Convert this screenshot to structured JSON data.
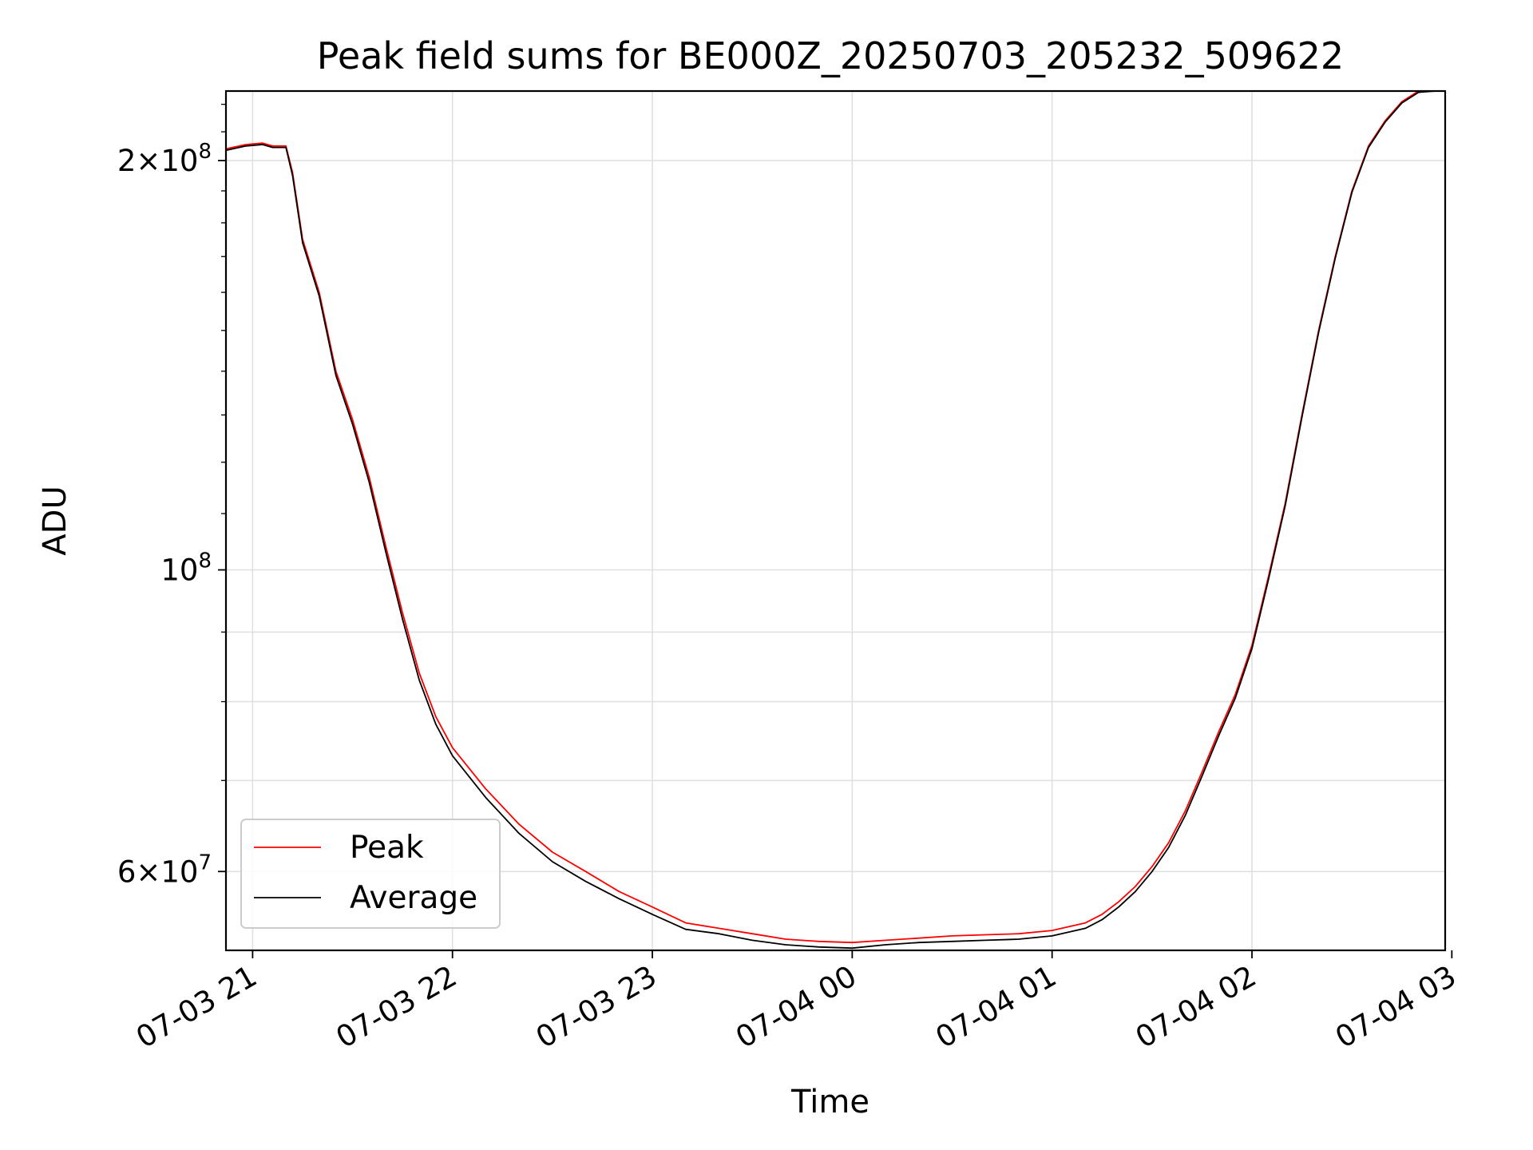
{
  "chart_data": {
    "type": "line",
    "title": "Peak field sums for BE000Z_20250703_205232_509622",
    "xlabel": "Time",
    "ylabel": "ADU",
    "yscale": "log",
    "grid": true,
    "legend_position": "lower-left",
    "xlim": [
      "2025-07-03 20:52",
      "2025-07-04 02:58"
    ],
    "ylim": [
      52500000,
      225000000
    ],
    "x_ticks": [
      "07-03 21",
      "07-03 22",
      "07-03 23",
      "07-04 00",
      "07-04 01",
      "07-04 02",
      "07-04 03"
    ],
    "y_ticks": [
      {
        "value": 200000000,
        "mant": "2",
        "exp": "8"
      },
      {
        "value": 100000000,
        "mant": "",
        "exp": "8"
      },
      {
        "value": 60000000,
        "mant": "6",
        "exp": "7"
      }
    ],
    "series": [
      {
        "name": "Peak",
        "color": "#ff0000",
        "x": [
          "2025-07-03 20:52",
          "2025-07-03 20:58",
          "2025-07-03 21:03",
          "2025-07-03 21:06",
          "2025-07-03 21:10",
          "2025-07-03 21:12",
          "2025-07-03 21:15",
          "2025-07-03 21:20",
          "2025-07-03 21:25",
          "2025-07-03 21:30",
          "2025-07-03 21:35",
          "2025-07-03 21:40",
          "2025-07-03 21:45",
          "2025-07-03 21:50",
          "2025-07-03 21:55",
          "2025-07-03 22:00",
          "2025-07-03 22:10",
          "2025-07-03 22:20",
          "2025-07-03 22:30",
          "2025-07-03 22:40",
          "2025-07-03 22:50",
          "2025-07-03 23:00",
          "2025-07-03 23:10",
          "2025-07-03 23:20",
          "2025-07-03 23:30",
          "2025-07-03 23:40",
          "2025-07-03 23:50",
          "2025-07-04 00:00",
          "2025-07-04 00:10",
          "2025-07-04 00:20",
          "2025-07-04 00:30",
          "2025-07-04 00:40",
          "2025-07-04 00:50",
          "2025-07-04 01:00",
          "2025-07-04 01:10",
          "2025-07-04 01:15",
          "2025-07-04 01:20",
          "2025-07-04 01:25",
          "2025-07-04 01:30",
          "2025-07-04 01:35",
          "2025-07-04 01:40",
          "2025-07-04 01:45",
          "2025-07-04 01:50",
          "2025-07-04 01:55",
          "2025-07-04 02:00",
          "2025-07-04 02:05",
          "2025-07-04 02:10",
          "2025-07-04 02:15",
          "2025-07-04 02:20",
          "2025-07-04 02:25",
          "2025-07-04 02:30",
          "2025-07-04 02:35",
          "2025-07-04 02:40",
          "2025-07-04 02:45",
          "2025-07-04 02:50",
          "2025-07-04 02:55",
          "2025-07-04 02:58"
        ],
        "values": [
          204000000,
          205500000,
          206000000,
          205000000,
          205000000,
          196000000,
          175000000,
          160000000,
          140000000,
          129000000,
          117000000,
          104000000,
          93000000,
          84000000,
          78000000,
          74000000,
          69000000,
          65000000,
          62000000,
          60000000,
          58000000,
          56500000,
          55000000,
          54500000,
          54000000,
          53500000,
          53300000,
          53200000,
          53400000,
          53600000,
          53800000,
          53900000,
          54000000,
          54300000,
          55000000,
          55800000,
          57000000,
          58500000,
          60500000,
          63000000,
          66500000,
          71000000,
          76000000,
          81000000,
          88000000,
          99000000,
          112000000,
          130000000,
          150000000,
          170000000,
          190000000,
          205000000,
          214000000,
          221000000,
          225000000,
          225000000,
          225000000
        ]
      },
      {
        "name": "Average",
        "color": "#000000",
        "x": [
          "2025-07-03 20:52",
          "2025-07-03 20:58",
          "2025-07-03 21:03",
          "2025-07-03 21:06",
          "2025-07-03 21:10",
          "2025-07-03 21:12",
          "2025-07-03 21:15",
          "2025-07-03 21:20",
          "2025-07-03 21:25",
          "2025-07-03 21:30",
          "2025-07-03 21:35",
          "2025-07-03 21:40",
          "2025-07-03 21:45",
          "2025-07-03 21:50",
          "2025-07-03 21:55",
          "2025-07-03 22:00",
          "2025-07-03 22:10",
          "2025-07-03 22:20",
          "2025-07-03 22:30",
          "2025-07-03 22:40",
          "2025-07-03 22:50",
          "2025-07-03 23:00",
          "2025-07-03 23:10",
          "2025-07-03 23:20",
          "2025-07-03 23:30",
          "2025-07-03 23:40",
          "2025-07-03 23:50",
          "2025-07-04 00:00",
          "2025-07-04 00:10",
          "2025-07-04 00:20",
          "2025-07-04 00:30",
          "2025-07-04 00:40",
          "2025-07-04 00:50",
          "2025-07-04 01:00",
          "2025-07-04 01:10",
          "2025-07-04 01:15",
          "2025-07-04 01:20",
          "2025-07-04 01:25",
          "2025-07-04 01:30",
          "2025-07-04 01:35",
          "2025-07-04 01:40",
          "2025-07-04 01:45",
          "2025-07-04 01:50",
          "2025-07-04 01:55",
          "2025-07-04 02:00",
          "2025-07-04 02:05",
          "2025-07-04 02:10",
          "2025-07-04 02:15",
          "2025-07-04 02:20",
          "2025-07-04 02:25",
          "2025-07-04 02:30",
          "2025-07-04 02:35",
          "2025-07-04 02:40",
          "2025-07-04 02:45",
          "2025-07-04 02:50",
          "2025-07-04 02:55",
          "2025-07-04 02:58"
        ],
        "values": [
          203500000,
          205000000,
          205500000,
          204500000,
          204500000,
          195000000,
          174000000,
          159000000,
          139000000,
          128000000,
          116000000,
          103000000,
          92000000,
          83000000,
          77000000,
          73000000,
          68000000,
          64000000,
          61000000,
          59000000,
          57300000,
          55800000,
          54400000,
          54000000,
          53400000,
          53000000,
          52800000,
          52700000,
          53000000,
          53200000,
          53300000,
          53400000,
          53500000,
          53800000,
          54500000,
          55300000,
          56500000,
          58000000,
          60000000,
          62500000,
          66000000,
          70500000,
          75500000,
          80500000,
          87500000,
          98500000,
          111500000,
          129500000,
          149500000,
          169500000,
          189500000,
          204500000,
          213500000,
          220500000,
          224500000,
          225000000,
          225000000
        ]
      }
    ]
  }
}
